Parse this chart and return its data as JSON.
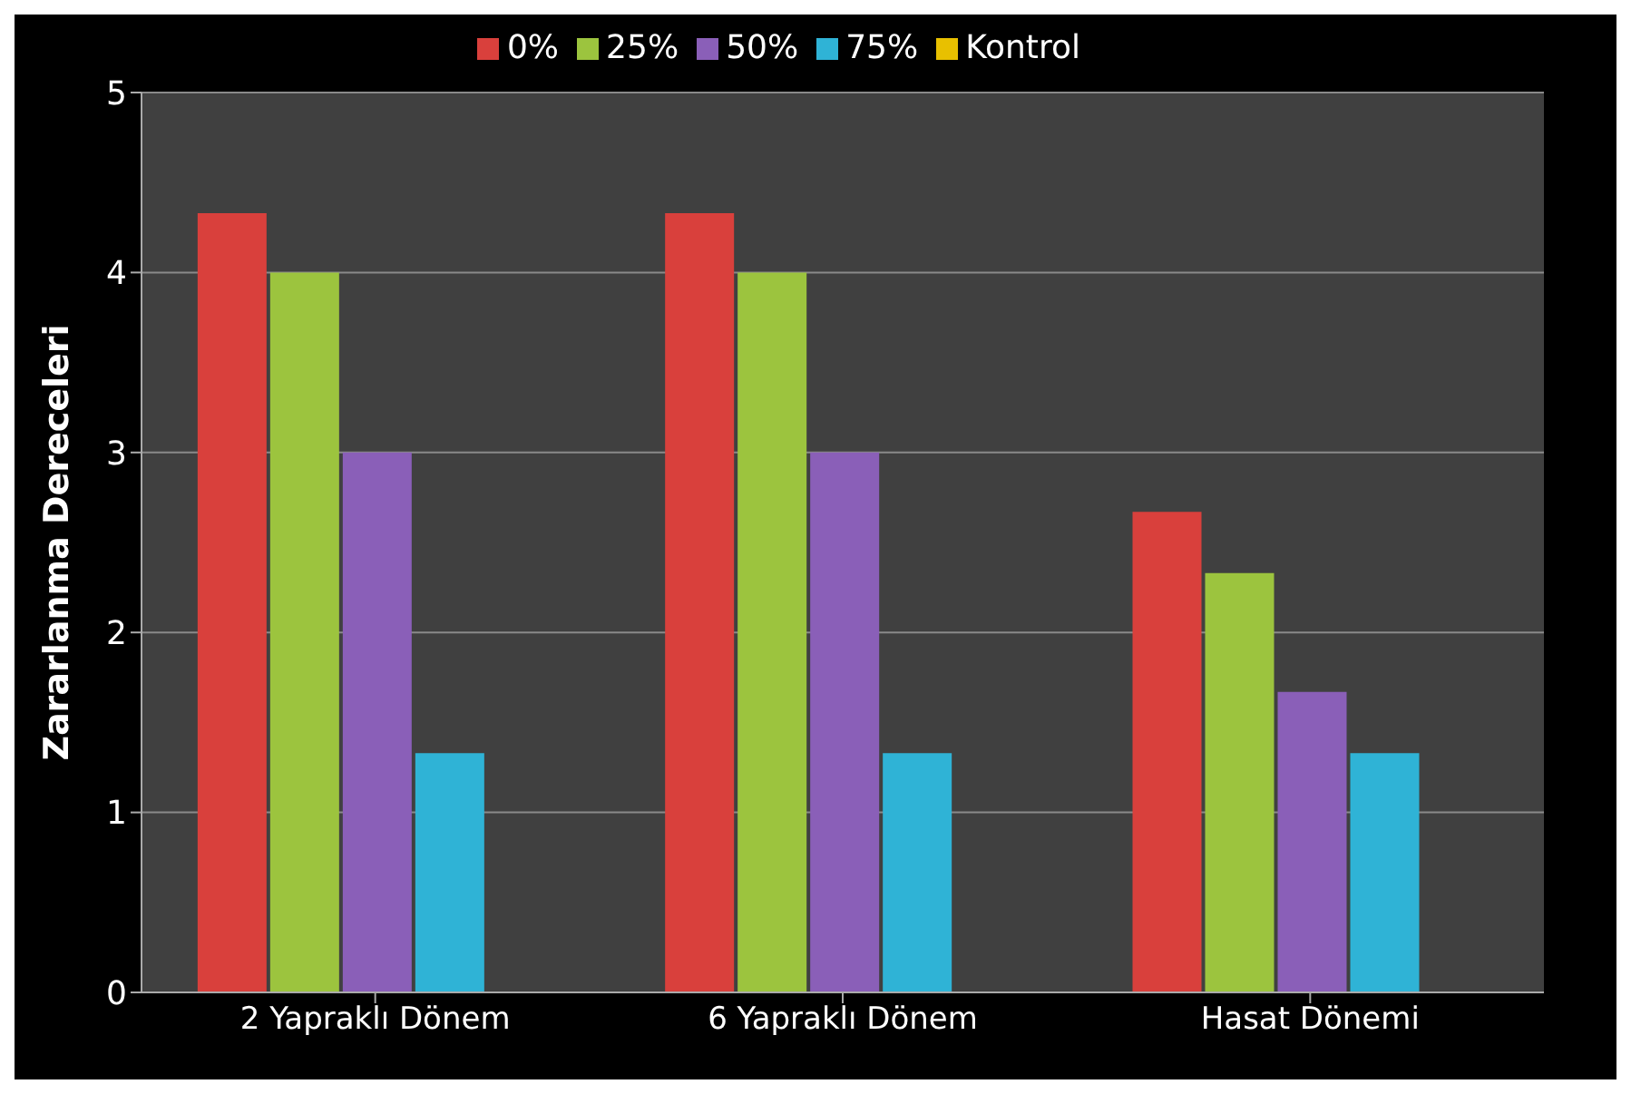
{
  "chart_data": {
    "type": "bar",
    "ylabel": "Zararlanma Dereceleri",
    "categories": [
      "2 Yapraklı Dönem",
      "6 Yapraklı Dönem",
      "Hasat Dönemi"
    ],
    "series": [
      {
        "name": "0%",
        "color": "#d9403c",
        "values": [
          4.33,
          4.33,
          2.67
        ]
      },
      {
        "name": "25%",
        "color": "#9cc43e",
        "values": [
          4,
          4,
          2.33
        ]
      },
      {
        "name": "50%",
        "color": "#8a5fb8",
        "values": [
          3,
          3,
          1.67
        ]
      },
      {
        "name": "75%",
        "color": "#2fb3d6",
        "values": [
          1.33,
          1.33,
          1.33
        ]
      },
      {
        "name": "Kontrol",
        "color": "#e8c000",
        "values": [
          0,
          0,
          0
        ]
      }
    ],
    "ylim": [
      0,
      5
    ],
    "yticks": [
      0,
      1,
      2,
      3,
      4,
      5
    ],
    "grid": "y",
    "legend": "top"
  }
}
